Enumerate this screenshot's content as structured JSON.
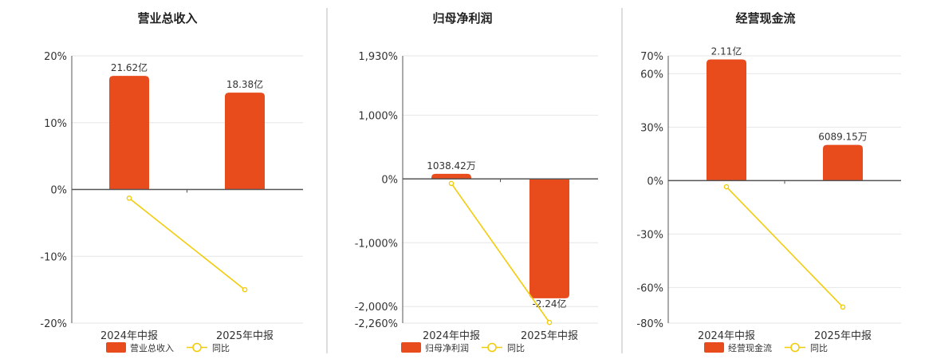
{
  "colors": {
    "bar": "#e84b1c",
    "line": "#f2cc0c",
    "grid": "#e6e6e6",
    "axis": "#555555",
    "divider": "#bbbbbb"
  },
  "chart_data": [
    {
      "type": "bar",
      "title": "营业总收入",
      "categories": [
        "2024年中报",
        "2025年中报"
      ],
      "ylim": [
        -20,
        20
      ],
      "yticks": [
        20,
        10,
        0,
        -10,
        -20
      ],
      "ytick_labels": [
        "20%",
        "10%",
        "0%",
        "-10%",
        "-20%"
      ],
      "grid": true,
      "legend_position": "bottom",
      "series": [
        {
          "name": "营业总收入",
          "kind": "bar",
          "values": [
            17.0,
            14.5
          ],
          "labels": [
            "21.62亿",
            "18.38亿"
          ]
        },
        {
          "name": "同比",
          "kind": "line",
          "values": [
            -1.3,
            -15.0
          ]
        }
      ]
    },
    {
      "type": "bar",
      "title": "归母净利润",
      "categories": [
        "2024年中报",
        "2025年中报"
      ],
      "ylim": [
        -2260,
        1930
      ],
      "yticks": [
        1930,
        1000,
        0,
        -1000,
        -2000,
        -2260
      ],
      "ytick_labels": [
        "1,930%",
        "1,000%",
        "0%",
        "-1,000%",
        "-2,000%",
        "-2,260%"
      ],
      "grid": true,
      "legend_position": "bottom",
      "series": [
        {
          "name": "归母净利润",
          "kind": "bar",
          "values": [
            80,
            -1870
          ],
          "labels": [
            "1038.42万",
            "-2.24亿"
          ]
        },
        {
          "name": "同比",
          "kind": "line",
          "values": [
            -70,
            -2250
          ]
        }
      ]
    },
    {
      "type": "bar",
      "title": "经营现金流",
      "categories": [
        "2024年中报",
        "2025年中报"
      ],
      "ylim": [
        -80,
        70
      ],
      "yticks": [
        70,
        60,
        30,
        0,
        -30,
        -60,
        -80
      ],
      "ytick_labels": [
        "70%",
        "60%",
        "30%",
        "0%",
        "-30%",
        "-60%",
        "-80%"
      ],
      "grid": true,
      "legend_position": "bottom",
      "series": [
        {
          "name": "经营现金流",
          "kind": "bar",
          "values": [
            68,
            20
          ],
          "labels": [
            "2.11亿",
            "6089.15万"
          ]
        },
        {
          "name": "同比",
          "kind": "line",
          "values": [
            -3.5,
            -71
          ]
        }
      ]
    }
  ]
}
